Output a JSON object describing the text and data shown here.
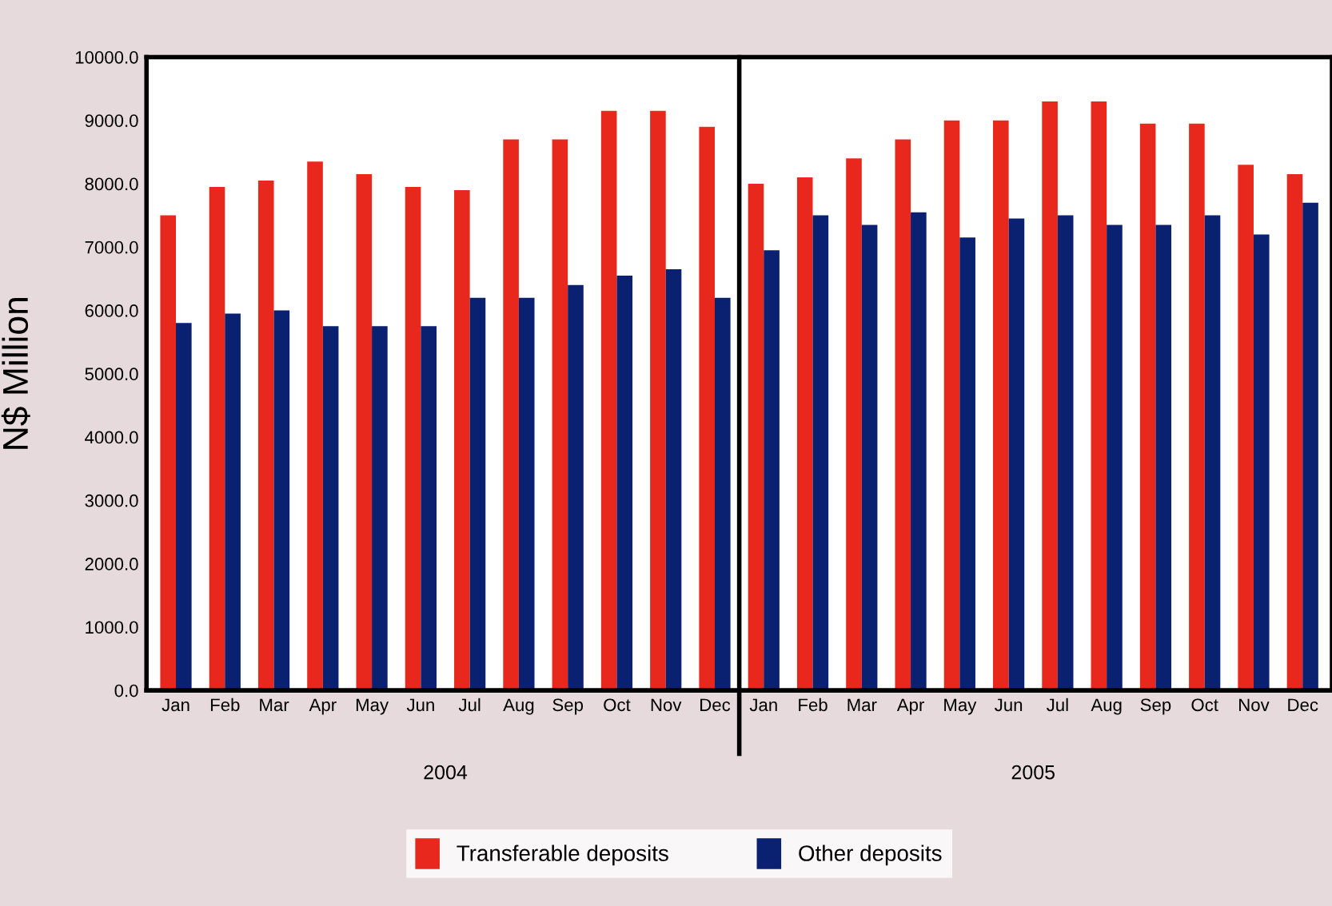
{
  "chart_data": {
    "type": "bar",
    "ylabel": "N$ Million",
    "categories": [
      "Jan",
      "Feb",
      "Mar",
      "Apr",
      "May",
      "Jun",
      "Jul",
      "Aug",
      "Sep",
      "Oct",
      "Nov",
      "Dec",
      "Jan",
      "Feb",
      "Mar",
      "Apr",
      "May",
      "Jun",
      "Jul",
      "Aug",
      "Sep",
      "Oct",
      "Nov",
      "Dec"
    ],
    "series": [
      {
        "name": "Transferable deposits",
        "color": "#e8281c",
        "values": [
          7500,
          7950,
          8050,
          8350,
          8150,
          7950,
          7900,
          8700,
          8700,
          9150,
          9150,
          8900,
          8000,
          8100,
          8400,
          8700,
          9000,
          9000,
          9300,
          9300,
          8950,
          8950,
          8300,
          8150
        ]
      },
      {
        "name": "Other deposits",
        "color": "#0a2070",
        "values": [
          5800,
          5950,
          6000,
          5750,
          5750,
          5750,
          6200,
          6200,
          6400,
          6550,
          6650,
          6200,
          6950,
          7500,
          7350,
          7550,
          7150,
          7450,
          7500,
          7350,
          7350,
          7500,
          7200,
          7700
        ]
      }
    ],
    "ylim": [
      0,
      10000
    ],
    "yticks": [
      {
        "value": 0,
        "label": "0.0"
      },
      {
        "value": 1000,
        "label": "1000.0"
      },
      {
        "value": 2000,
        "label": "2000.0"
      },
      {
        "value": 3000,
        "label": "3000.0"
      },
      {
        "value": 4000,
        "label": "4000.0"
      },
      {
        "value": 5000,
        "label": "5000.0"
      },
      {
        "value": 6000,
        "label": "6000.0"
      },
      {
        "value": 7000,
        "label": "7000.0"
      },
      {
        "value": 8000,
        "label": "8000.0"
      },
      {
        "value": 9000,
        "label": "9000.0"
      },
      {
        "value": 10000,
        "label": "10000.0"
      }
    ],
    "annotations": [
      "2004",
      "2005"
    ],
    "legend": "bottom",
    "grid": false
  }
}
